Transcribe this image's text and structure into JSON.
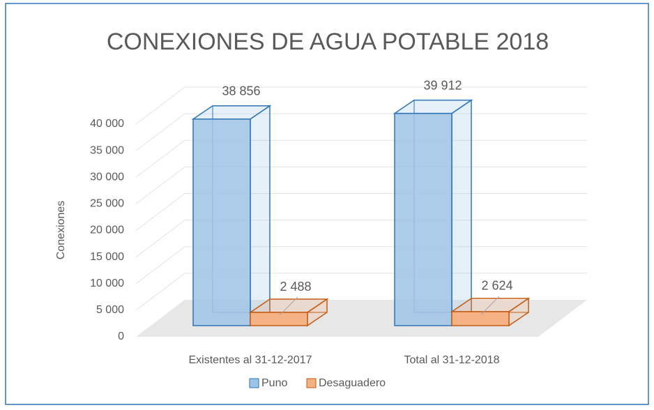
{
  "chart_data": {
    "type": "bar3d",
    "title": "CONEXIONES DE AGUA POTABLE 2018",
    "y_label": "Conexiones",
    "categories": [
      "Existentes al 31-12-2017",
      "Total al 31-12-2018"
    ],
    "series": [
      {
        "name": "Puno",
        "color": "#9dc3e6",
        "stroke": "#2e75b6",
        "values": [
          38856,
          39912
        ],
        "value_labels": [
          "38 856",
          "39 912"
        ]
      },
      {
        "name": "Desaguadero",
        "color": "#f4b183",
        "stroke": "#c55a11",
        "values": [
          2488,
          2624
        ],
        "value_labels": [
          "2 488",
          "2 624"
        ]
      }
    ],
    "ylim": [
      0,
      40000
    ],
    "yticks": [
      0,
      {
        "value": 5000,
        "label": "5 000"
      },
      {
        "value": 10000,
        "label": "10 000"
      },
      {
        "value": 15000,
        "label": "15 000"
      },
      {
        "value": 20000,
        "label": "20 000"
      },
      {
        "value": 25000,
        "label": "25 000"
      },
      {
        "value": 30000,
        "label": "30 000"
      },
      {
        "value": 35000,
        "label": "35 000"
      },
      {
        "value": 40000,
        "label": "40 000"
      }
    ],
    "grid": true,
    "legend": "bottom"
  }
}
